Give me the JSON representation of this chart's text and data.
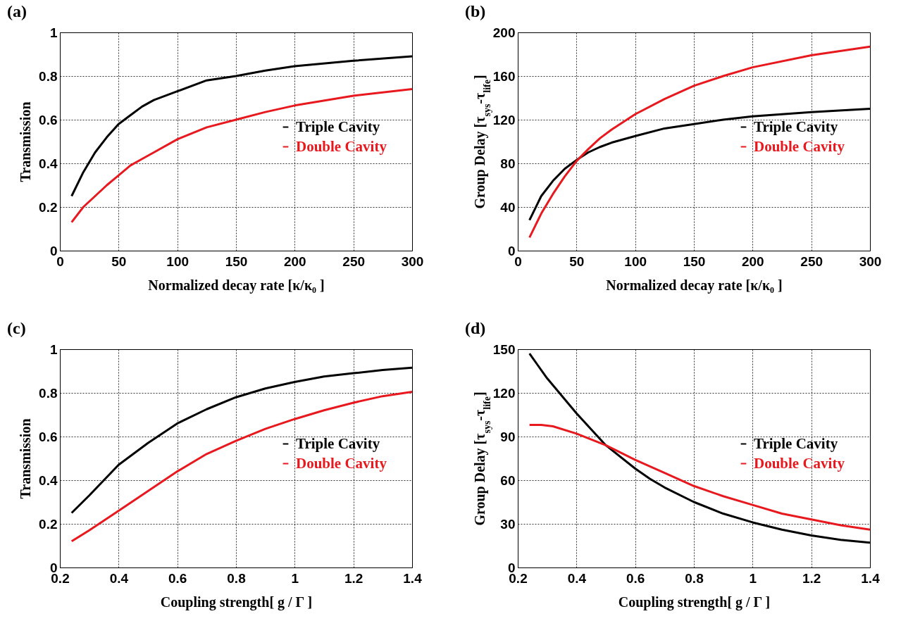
{
  "chart_data": [
    {
      "type": "line",
      "title": "(a)",
      "xlabel": "Normalized decay rate [κ/κ₀ ]",
      "ylabel": "Transmission",
      "xlim": [
        0,
        300
      ],
      "xticks": [
        0,
        50,
        100,
        150,
        200,
        250,
        300
      ],
      "ylim": [
        0,
        1
      ],
      "yticks": [
        0,
        0.2,
        0.4,
        0.6,
        0.8,
        1
      ],
      "grid": true,
      "legend": "right",
      "line_style": "solid",
      "x": [
        10,
        20,
        30,
        40,
        50,
        60,
        70,
        80,
        100,
        125,
        150,
        175,
        200,
        250,
        300
      ],
      "series": [
        {
          "name": "Triple Cavity",
          "color": "#000000",
          "values": [
            0.25,
            0.36,
            0.45,
            0.52,
            0.58,
            0.62,
            0.66,
            0.69,
            0.73,
            0.78,
            0.8,
            0.825,
            0.845,
            0.87,
            0.89
          ]
        },
        {
          "name": "Double Cavity",
          "color": "#e8191e",
          "values": [
            0.13,
            0.2,
            0.25,
            0.3,
            0.345,
            0.39,
            0.42,
            0.45,
            0.51,
            0.565,
            0.6,
            0.635,
            0.665,
            0.71,
            0.74
          ]
        }
      ]
    },
    {
      "type": "line",
      "title": "(b)",
      "xlabel": "Normalized decay rate [κ/κ₀ ]",
      "ylabel": "Group Delay [τ$_{sys}$-τ$_{life}$]",
      "xlim": [
        0,
        300
      ],
      "xticks": [
        0,
        50,
        100,
        150,
        200,
        250,
        300
      ],
      "ylim": [
        0,
        200
      ],
      "yticks": [
        0,
        40,
        80,
        120,
        160,
        200
      ],
      "grid": true,
      "legend": "right",
      "line_style": "solid",
      "x": [
        10,
        20,
        30,
        40,
        50,
        60,
        70,
        80,
        100,
        125,
        150,
        175,
        200,
        250,
        300
      ],
      "series": [
        {
          "name": "Triple Cavity",
          "color": "#000000",
          "values": [
            28,
            50,
            64,
            75,
            83,
            90,
            95,
            99,
            105,
            112,
            116,
            120,
            123,
            127,
            130
          ]
        },
        {
          "name": "Double Cavity",
          "color": "#e8191e",
          "values": [
            12,
            34,
            52,
            68,
            82,
            93,
            103,
            111,
            125,
            139,
            151,
            160,
            168,
            179,
            187
          ]
        }
      ]
    },
    {
      "type": "line",
      "title": "(c)",
      "xlabel": "Coupling strength[ g / Γ ]",
      "ylabel": "Transmission",
      "xlim": [
        0.2,
        1.4
      ],
      "xticks": [
        0.2,
        0.4,
        0.6,
        0.8,
        1,
        1.2,
        1.4
      ],
      "ylim": [
        0,
        1
      ],
      "yticks": [
        0,
        0.2,
        0.4,
        0.6,
        0.8,
        1
      ],
      "grid": true,
      "legend": "right",
      "line_style": "solid",
      "x": [
        0.24,
        0.3,
        0.4,
        0.5,
        0.6,
        0.7,
        0.8,
        0.9,
        1.0,
        1.1,
        1.2,
        1.3,
        1.4
      ],
      "series": [
        {
          "name": "Triple Cavity",
          "color": "#000000",
          "values": [
            0.25,
            0.33,
            0.47,
            0.57,
            0.66,
            0.725,
            0.78,
            0.82,
            0.85,
            0.875,
            0.89,
            0.905,
            0.915
          ]
        },
        {
          "name": "Double Cavity",
          "color": "#e8191e",
          "values": [
            0.12,
            0.17,
            0.26,
            0.35,
            0.44,
            0.52,
            0.58,
            0.635,
            0.68,
            0.72,
            0.755,
            0.785,
            0.805
          ]
        }
      ]
    },
    {
      "type": "line",
      "title": "(d)",
      "xlabel": "Coupling strength[ g / Γ ]",
      "ylabel": "Group Delay [τ$_{sys}$-τ$_{life}$]",
      "xlim": [
        0.2,
        1.4
      ],
      "xticks": [
        0.2,
        0.4,
        0.6,
        0.8,
        1,
        1.2,
        1.4
      ],
      "ylim": [
        0,
        150
      ],
      "yticks": [
        0,
        30,
        60,
        90,
        120,
        150
      ],
      "grid": true,
      "legend": "right",
      "line_style": "solid",
      "series": [
        {
          "name": "Triple Cavity",
          "color": "#000000",
          "x": [
            0.24,
            0.3,
            0.4,
            0.5,
            0.6,
            0.65,
            0.7,
            0.8,
            0.9,
            1.0,
            1.1,
            1.2,
            1.3,
            1.4
          ],
          "values": [
            147,
            130,
            106,
            84,
            68,
            61,
            55,
            45,
            37,
            31,
            26,
            22,
            19,
            17
          ]
        },
        {
          "name": "Double Cavity",
          "color": "#e8191e",
          "x": [
            0.24,
            0.28,
            0.32,
            0.4,
            0.5,
            0.6,
            0.7,
            0.8,
            0.9,
            1.0,
            1.1,
            1.2,
            1.3,
            1.4
          ],
          "values": [
            98,
            98,
            97,
            92,
            84,
            74,
            65,
            56,
            49,
            43,
            37,
            33,
            29,
            26
          ]
        }
      ]
    }
  ]
}
